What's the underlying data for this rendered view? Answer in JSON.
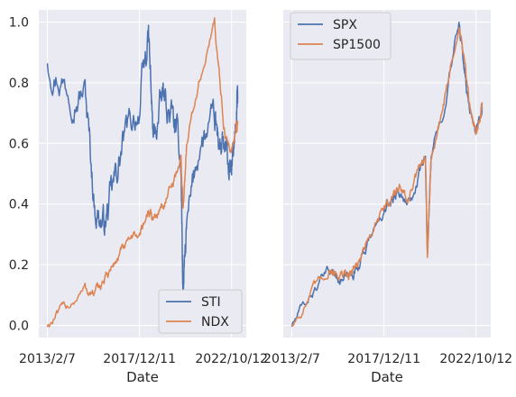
{
  "chart_data": [
    {
      "type": "line",
      "xlabel": "Date",
      "ylabel": "",
      "ylim": [
        -0.04,
        1.04
      ],
      "yticks": [
        "0.0",
        "0.2",
        "0.4",
        "0.6",
        "0.8",
        "1.0"
      ],
      "xticks": [
        "2013/2/7",
        "2017/12/11",
        "2022/10/12"
      ],
      "x": [
        "2013/2/7",
        "2014/2/1",
        "2015/2/1",
        "2015/8/1",
        "2016/2/1",
        "2016/8/1",
        "2017/2/1",
        "2017/12/11",
        "2018/6/1",
        "2018/9/1",
        "2019/3/1",
        "2019/9/1",
        "2020/2/15",
        "2020/3/23",
        "2020/6/1",
        "2021/2/1",
        "2021/11/19",
        "2022/3/1",
        "2022/6/15",
        "2022/10/12",
        "2023/1/15",
        "2023/2/7"
      ],
      "grid": true,
      "legend": "bottom-right",
      "series": [
        {
          "name": "STI",
          "color": "#4c72b0",
          "values": [
            0.88,
            0.8,
            0.78,
            0.4,
            0.33,
            0.45,
            0.6,
            0.72,
            0.95,
            0.6,
            0.75,
            0.68,
            0.55,
            0.1,
            0.3,
            0.6,
            0.65,
            0.6,
            0.55,
            0.48,
            0.7,
            0.76
          ]
        },
        {
          "name": "NDX",
          "color": "#dd8452",
          "values": [
            0.0,
            0.06,
            0.12,
            0.1,
            0.15,
            0.2,
            0.25,
            0.3,
            0.38,
            0.35,
            0.4,
            0.45,
            0.55,
            0.38,
            0.6,
            0.8,
            1.0,
            0.8,
            0.62,
            0.58,
            0.65,
            0.67
          ]
        }
      ]
    },
    {
      "type": "line",
      "xlabel": "Date",
      "ylabel": "",
      "ylim": [
        -0.04,
        1.04
      ],
      "xticks": [
        "2013/2/7",
        "2017/12/11",
        "2022/10/12"
      ],
      "x": [
        "2013/2/7",
        "2014/2/1",
        "2015/2/1",
        "2015/8/1",
        "2016/2/1",
        "2016/8/1",
        "2017/2/1",
        "2017/12/11",
        "2018/6/1",
        "2018/9/1",
        "2019/3/1",
        "2019/9/1",
        "2020/2/15",
        "2020/3/23",
        "2020/6/1",
        "2021/2/1",
        "2021/11/19",
        "2022/3/1",
        "2022/6/15",
        "2022/10/12",
        "2023/1/15",
        "2023/2/7"
      ],
      "grid": true,
      "legend": "top-left",
      "series": [
        {
          "name": "SPX",
          "color": "#4c72b0",
          "values": [
            0.0,
            0.1,
            0.18,
            0.16,
            0.15,
            0.2,
            0.27,
            0.37,
            0.42,
            0.45,
            0.4,
            0.48,
            0.56,
            0.22,
            0.55,
            0.72,
            1.0,
            0.85,
            0.7,
            0.64,
            0.7,
            0.72
          ]
        },
        {
          "name": "SP1500",
          "color": "#dd8452",
          "values": [
            0.0,
            0.1,
            0.19,
            0.17,
            0.16,
            0.21,
            0.28,
            0.38,
            0.43,
            0.46,
            0.41,
            0.49,
            0.57,
            0.22,
            0.56,
            0.73,
            1.0,
            0.86,
            0.71,
            0.64,
            0.71,
            0.73
          ]
        }
      ]
    }
  ]
}
